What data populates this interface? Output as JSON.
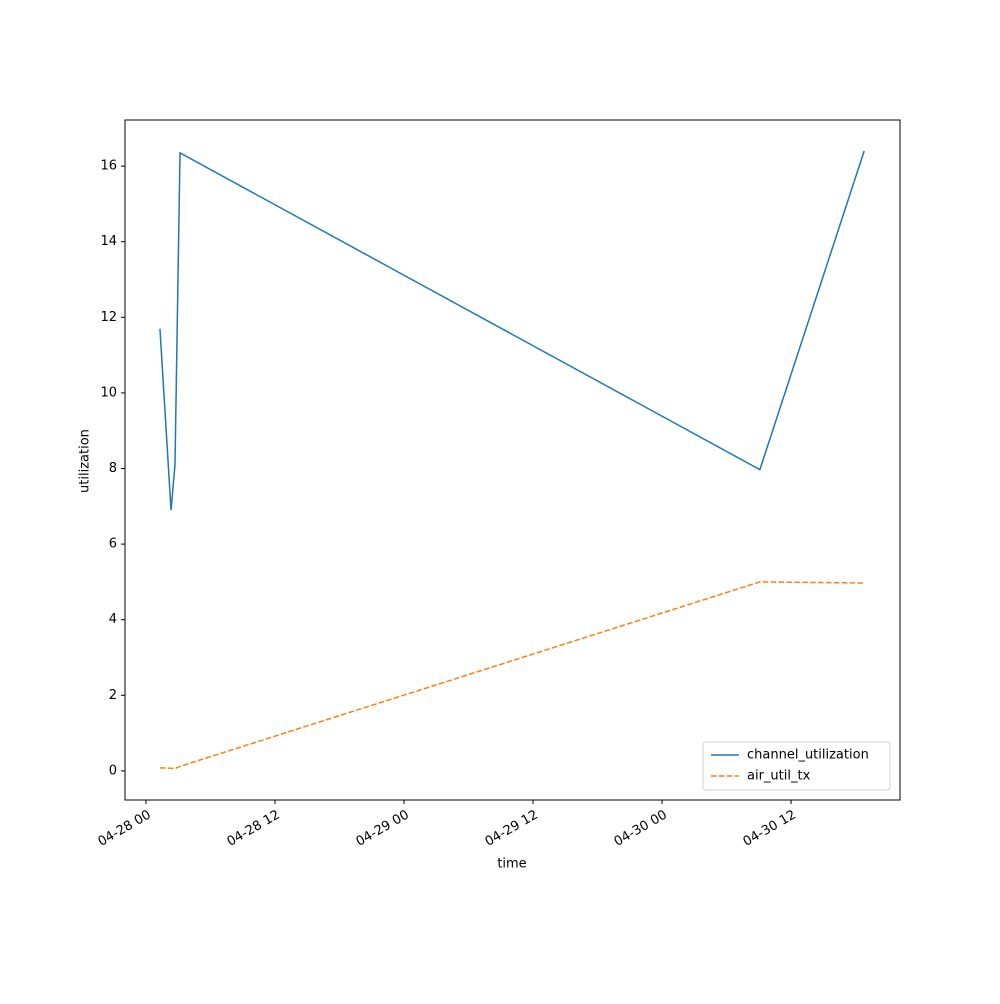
{
  "chart_data": {
    "type": "line",
    "x_label": "time",
    "y_label": "utilization",
    "x": [
      "04-28 01:18",
      "04-28 02:20",
      "04-28 02:42",
      "04-28 03:10",
      "04-30 09:06",
      "04-30 18:48"
    ],
    "series": [
      {
        "name": "channel_utilization",
        "color": "#1f77b4",
        "dash": "solid",
        "values": [
          11.7,
          6.9,
          8.1,
          16.35,
          7.97,
          16.4
        ]
      },
      {
        "name": "air_util_tx",
        "color": "#ff7f0e",
        "dash": "dashed",
        "values": [
          0.08,
          0.07,
          0.06,
          0.12,
          5.0,
          4.97
        ]
      }
    ],
    "xlim": [
      "04-27 22:03",
      "04-30 22:08"
    ],
    "xticks": [
      "04-28 00",
      "04-28 12",
      "04-29 00",
      "04-29 12",
      "04-30 00",
      "04-30 12"
    ],
    "ylim": [
      -0.77,
      17.22
    ],
    "yticks": [
      0,
      2,
      4,
      6,
      8,
      10,
      12,
      14,
      16
    ],
    "legend": "lower right"
  }
}
